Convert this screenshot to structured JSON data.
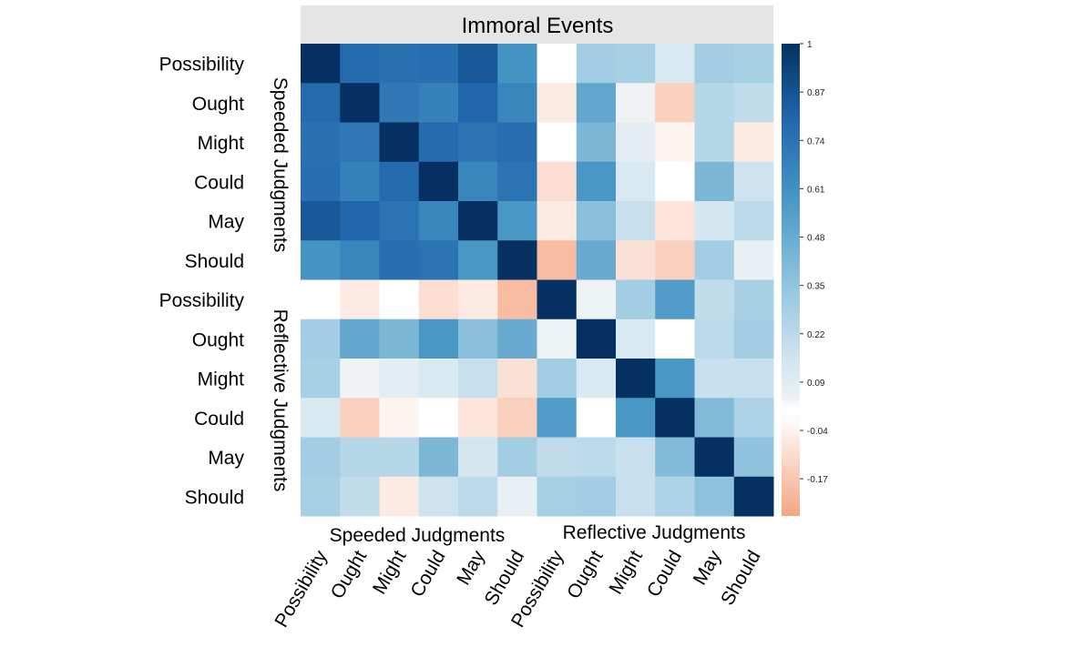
{
  "chart_data": {
    "type": "heatmap",
    "title": "Immoral Events",
    "groups": [
      "Speeded Judgments",
      "Reflective Judgments"
    ],
    "labels": [
      "Possibility",
      "Ought",
      "Might",
      "Could",
      "May",
      "Should"
    ],
    "colorbar_ticks": [
      "1",
      "0.87",
      "0.74",
      "0.61",
      "0.48",
      "0.35",
      "0.22",
      "0.09",
      "-0.04",
      "-0.17"
    ],
    "colorbar_range": [
      -0.27,
      1
    ],
    "colors": {
      "high": "#053061",
      "mid": "#ffffff",
      "low": "#f4a582",
      "title_band": "#e5e5e5"
    },
    "matrix": [
      [
        1.0,
        0.78,
        0.75,
        0.76,
        0.85,
        0.6,
        0.0,
        0.3,
        0.28,
        0.12,
        0.3,
        0.28
      ],
      [
        0.78,
        1.0,
        0.72,
        0.68,
        0.8,
        0.66,
        -0.06,
        0.5,
        0.03,
        -0.14,
        0.24,
        0.2
      ],
      [
        0.75,
        0.72,
        1.0,
        0.78,
        0.74,
        0.76,
        0.0,
        0.42,
        0.08,
        -0.03,
        0.24,
        -0.06
      ],
      [
        0.76,
        0.68,
        0.78,
        1.0,
        0.66,
        0.74,
        -0.1,
        0.58,
        0.12,
        0.0,
        0.42,
        0.16
      ],
      [
        0.85,
        0.8,
        0.74,
        0.66,
        1.0,
        0.58,
        -0.06,
        0.38,
        0.18,
        -0.08,
        0.14,
        0.22
      ],
      [
        0.6,
        0.66,
        0.76,
        0.74,
        0.58,
        1.0,
        -0.2,
        0.48,
        -0.09,
        -0.14,
        0.3,
        0.06
      ],
      [
        0.0,
        -0.06,
        0.0,
        -0.1,
        -0.06,
        -0.2,
        1.0,
        0.04,
        0.3,
        0.56,
        0.2,
        0.28
      ],
      [
        0.3,
        0.5,
        0.42,
        0.58,
        0.38,
        0.48,
        0.04,
        1.0,
        0.12,
        0.02,
        0.22,
        0.3
      ],
      [
        0.28,
        0.03,
        0.08,
        0.12,
        0.18,
        -0.09,
        0.3,
        0.12,
        1.0,
        0.58,
        0.18,
        0.18
      ],
      [
        0.12,
        -0.14,
        -0.03,
        0.0,
        -0.08,
        -0.14,
        0.56,
        0.02,
        0.58,
        1.0,
        0.4,
        0.26
      ],
      [
        0.3,
        0.24,
        0.24,
        0.42,
        0.14,
        0.3,
        0.2,
        0.22,
        0.18,
        0.4,
        1.0,
        0.36
      ],
      [
        0.28,
        0.2,
        -0.06,
        0.16,
        0.22,
        0.06,
        0.28,
        0.3,
        0.18,
        0.26,
        0.36,
        1.0
      ]
    ]
  }
}
